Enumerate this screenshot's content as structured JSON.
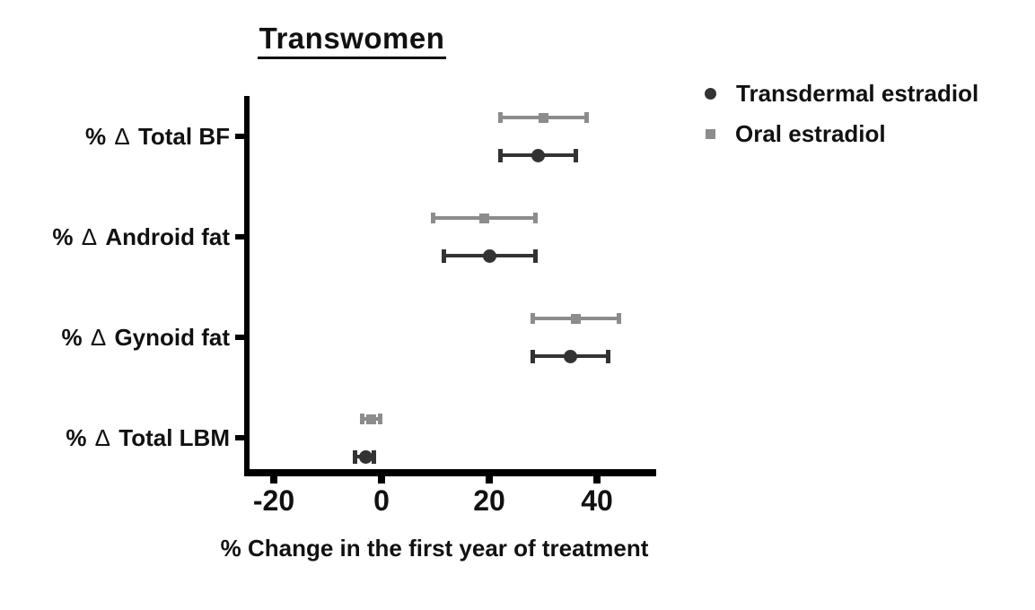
{
  "figure": {
    "title": "Transwomen",
    "xlabel": "% Change in the first year of treatment"
  },
  "legend": {
    "position": "top-right",
    "items": [
      {
        "label": "Transdermal estradiol",
        "marker": "circle-icon",
        "color": "#333333"
      },
      {
        "label": "Oral estradiol",
        "marker": "square-icon",
        "color": "#8c8c8c"
      }
    ]
  },
  "chart_data": {
    "type": "scatter",
    "subtype": "horizontal dot plot with error bars (forest-style)",
    "title": "Transwomen",
    "xlabel": "% Change in the first year of treatment",
    "ylabel": "",
    "categories": [
      "% Δ Total BF",
      "% Δ Android fat",
      "% Δ Gynoid fat",
      "% Δ Total LBM"
    ],
    "x_ticks": [
      -20,
      0,
      20,
      40
    ],
    "xlim": [
      -25,
      51
    ],
    "grid": false,
    "legend_position": "top-right",
    "series": [
      {
        "name": "Transdermal estradiol",
        "marker": "circle",
        "color": "#333333",
        "values": [
          29,
          20,
          35,
          -3
        ],
        "ci_low": [
          22,
          11.5,
          28,
          -5
        ],
        "ci_high": [
          36,
          28.5,
          42,
          -1.5
        ]
      },
      {
        "name": "Oral estradiol",
        "marker": "square",
        "color": "#8c8c8c",
        "values": [
          30,
          19,
          36,
          -2
        ],
        "ci_low": [
          22,
          9.5,
          28,
          -3.7
        ],
        "ci_high": [
          38,
          28.5,
          44,
          -0.3
        ]
      }
    ]
  }
}
